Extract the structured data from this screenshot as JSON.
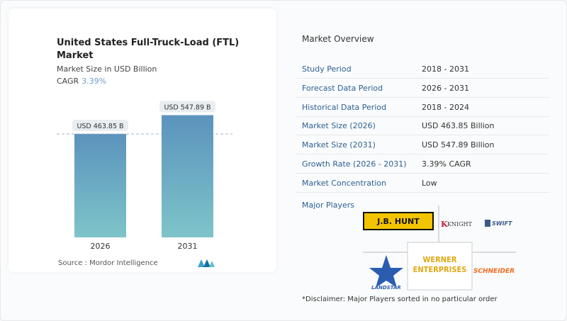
{
  "chart_card": {
    "title": "United States Full-Truck-Load (FTL) Market",
    "subtitle": "Market Size in USD Billion",
    "cagr_label": "CAGR",
    "cagr_value": "3.39%",
    "source": "Source :  Mordor Intelligence"
  },
  "chart_data": {
    "type": "bar",
    "categories": [
      "2026",
      "2031"
    ],
    "values": [
      463.85,
      547.89
    ],
    "data_labels": [
      "USD 463.85 B",
      "USD 547.89 B"
    ],
    "unit": "USD Billion",
    "color": "#5b93bd",
    "gradient_bottom": "#7ec4c9",
    "grid": false
  },
  "overview": {
    "heading": "Market Overview",
    "rows": [
      {
        "label": "Study Period",
        "value": "2018 - 2031"
      },
      {
        "label": "Forecast Data Period",
        "value": "2026 - 2031"
      },
      {
        "label": "Historical Data Period",
        "value": "2018 - 2024"
      },
      {
        "label": "Market Size (2026)",
        "value": "USD 463.85 Billion"
      },
      {
        "label": "Market Size (2031)",
        "value": "USD 547.89 Billion"
      },
      {
        "label": "Growth Rate (2026 - 2031)",
        "value": "3.39% CAGR"
      },
      {
        "label": "Market Concentration",
        "value": "Low"
      }
    ],
    "major_players_label": "Major Players",
    "players": [
      "J.B. HUNT",
      "KNIGHT",
      "SWIFT",
      "LANDSTAR",
      "WERNER ENTERPRISES",
      "SCHNEIDER"
    ],
    "disclaimer": "*Disclaimer: Major Players sorted in no particular order"
  }
}
